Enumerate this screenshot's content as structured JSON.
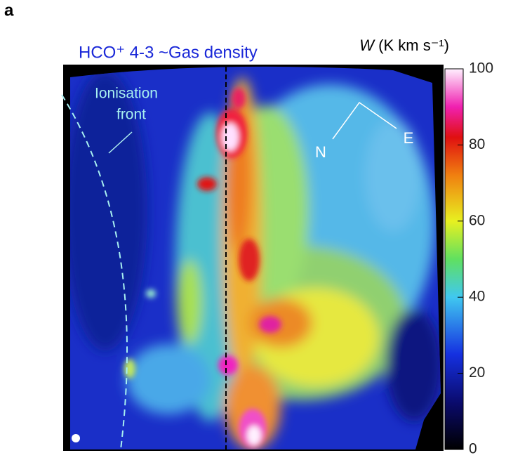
{
  "chart_data": {
    "type": "image",
    "panel_label": "a",
    "title": "HCO⁺ 4-3  ~Gas density",
    "colorbar_label_var": "W",
    "colorbar_label_unit": " (K km s⁻¹)",
    "annotations": {
      "front_line1": "Ionisation",
      "front_line2": "front",
      "north": "N",
      "east": "E"
    },
    "clim": [
      0,
      100
    ],
    "cticks": [
      0,
      20,
      40,
      60,
      80,
      100
    ]
  }
}
